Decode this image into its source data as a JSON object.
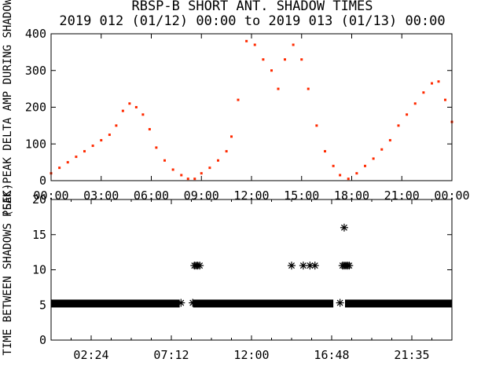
{
  "titles": [
    "RBSP-B SHORT ANT. SHADOW TIMES",
    "2019 012 (01/12) 00:00 to 2019 013 (01/13) 00:00"
  ],
  "chart_data": [
    {
      "type": "scatter",
      "ylabel": "PEAK-PEAK DELTA AMP DURING SHADOW",
      "ylim": [
        0,
        400
      ],
      "xlim_hours": [
        0,
        24
      ],
      "xtick_labels": [
        "00:00",
        "03:00",
        "06:00",
        "09:00",
        "12:00",
        "15:00",
        "18:00",
        "21:00",
        "00:00"
      ],
      "ytick_labels": [
        "0",
        "100",
        "200",
        "300",
        "400"
      ],
      "marker_color": "#ff2a00",
      "series": [
        {
          "x_hours": [
            0.0,
            0.5,
            1.0,
            1.5,
            2.0,
            2.5,
            3.0,
            3.5,
            3.9,
            4.3,
            4.7,
            5.1,
            5.5,
            5.9,
            6.3,
            6.8,
            7.3,
            7.8,
            8.2,
            8.6,
            9.0,
            9.5,
            10.0,
            10.5,
            10.8,
            11.2,
            11.7,
            12.2,
            12.7,
            13.2,
            13.6,
            14.0,
            14.5,
            15.0,
            15.4,
            15.9,
            16.4,
            16.9,
            17.3,
            17.8,
            18.3,
            18.8,
            19.3,
            19.8,
            20.3,
            20.8,
            21.3,
            21.8,
            22.3,
            22.8,
            23.2,
            23.6,
            24.0
          ],
          "values": [
            20,
            35,
            50,
            65,
            80,
            95,
            110,
            125,
            150,
            190,
            210,
            200,
            180,
            140,
            90,
            55,
            30,
            15,
            5,
            5,
            20,
            35,
            55,
            80,
            120,
            220,
            380,
            370,
            330,
            300,
            250,
            330,
            370,
            330,
            250,
            150,
            80,
            40,
            15,
            5,
            20,
            40,
            60,
            85,
            110,
            150,
            180,
            210,
            240,
            265,
            270,
            220,
            160
          ]
        }
      ]
    },
    {
      "type": "scatter",
      "ylabel": "TIME BETWEEN SHADOWS (SEC)",
      "ylim": [
        0,
        20
      ],
      "xlim_hours": [
        0,
        24
      ],
      "xtick_labels": [
        "02:24",
        "07:12",
        "12:00",
        "16:48",
        "21:35"
      ],
      "ytick_labels": [
        "0",
        "5",
        "10",
        "15",
        "20"
      ],
      "marker": "asterisk",
      "marker_color": "#000000",
      "series": [
        {
          "baseline_value": 5.2,
          "baseline_ranges_hours": [
            [
              0.0,
              7.7
            ],
            [
              8.5,
              16.9
            ],
            [
              17.6,
              24.0
            ]
          ],
          "outlier_x_hours": [
            7.78,
            8.48,
            8.58,
            8.68,
            8.78,
            8.9,
            14.4,
            15.1,
            15.5,
            15.8,
            17.3,
            17.45,
            17.55,
            17.65,
            17.75,
            17.85,
            17.55
          ],
          "outlier_values": [
            5.3,
            5.3,
            10.6,
            10.6,
            10.6,
            10.6,
            10.6,
            10.6,
            10.6,
            10.6,
            5.3,
            10.6,
            10.6,
            10.6,
            10.6,
            10.6,
            16.0
          ]
        }
      ]
    }
  ]
}
